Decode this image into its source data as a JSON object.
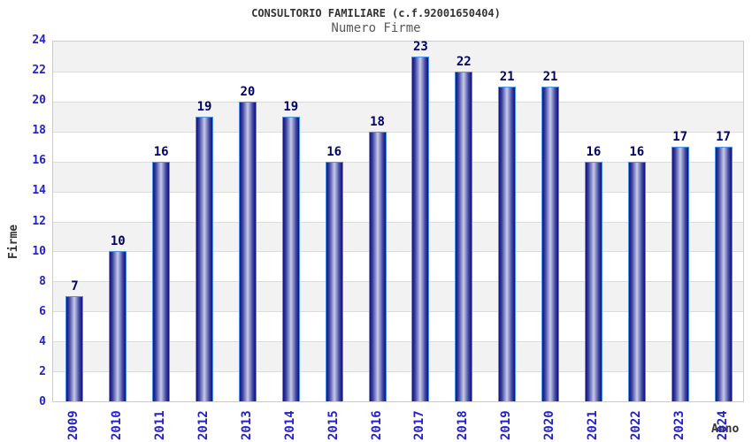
{
  "header": {
    "title": "CONSULTORIO FAMILIARE (c.f.92001650404)",
    "subtitle": "Numero Firme"
  },
  "chart_data": {
    "type": "bar",
    "title": "CONSULTORIO FAMILIARE (c.f.92001650404)",
    "subtitle": "Numero Firme",
    "xlabel": "Anno",
    "ylabel": "Firme",
    "categories": [
      "2009",
      "2010",
      "2011",
      "2012",
      "2013",
      "2014",
      "2015",
      "2016",
      "2017",
      "2018",
      "2019",
      "2020",
      "2021",
      "2022",
      "2023",
      "2024"
    ],
    "values": [
      7,
      10,
      16,
      19,
      20,
      19,
      16,
      18,
      23,
      22,
      21,
      21,
      16,
      16,
      17,
      17
    ],
    "ylim": [
      0,
      24
    ],
    "ytick_step": 2,
    "grid": true,
    "legend": "none",
    "colors": {
      "bar_border": "#4a95e8",
      "bar_edge": "#101080",
      "bar_center": "#c7cbe8",
      "value_label": "#000066",
      "tick_label": "#2222cc",
      "band": "#f2f2f2",
      "gridline": "#dcdcdc",
      "plot_border": "#cccccc",
      "title": "#333333",
      "subtitle": "#585858",
      "axis_title": "#333333"
    }
  }
}
